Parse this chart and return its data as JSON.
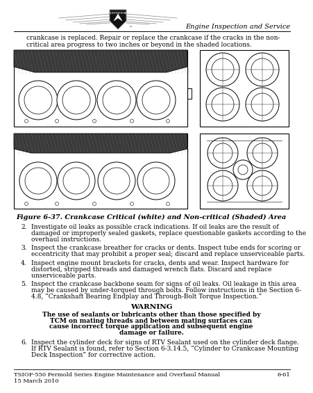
{
  "header_right": "Engine Inspection and Service",
  "intro_text_1": "crankcase is replaced. Repair or replace the crankcase if the cracks in the non-",
  "intro_text_2": "critical area progress to two inches or beyond in the shaded locations.",
  "figure_caption": "Figure 6-37. Crankcase Critical (white) and Non-critical (Shaded) Area",
  "items": [
    {
      "num": "2.",
      "text": "Investigate oil leaks as possible crack indications. If oil leaks are the result of\ndamaged or improperly sealed gaskets, replace questionable gaskets according to the\noverhaul instructions."
    },
    {
      "num": "3.",
      "text": "Inspect the crankcase breather for cracks or dents. Inspect tube ends for scoring or\neccentricity that may prohibit a proper seal; discard and replace unserviceable parts."
    },
    {
      "num": "4.",
      "text": "Inspect engine mount brackets for cracks, dents and wear. Inspect hardware for\ndistorted, stripped threads and damaged wrench flats. Discard and replace\nunserviceable parts."
    },
    {
      "num": "5.",
      "text": "Inspect the crankcase backbone seam for signs of oil leaks. Oil leakage in this area\nmay be caused by under-torqued through bolts. Follow instructions in the Section 6-\n4.8, “Crankshaft Bearing Endplay and Through-Bolt Torque Inspection.”"
    }
  ],
  "warning_title": "WARNING",
  "warning_text_lines": [
    "The use of sealants or lubricants other than those specified by",
    "TCM on mating threads and between mating surfaces can",
    "cause incorrect torque application and subsequent engine",
    "damage or failure."
  ],
  "item6": {
    "num": "6.",
    "text": "Inspect the cylinder deck for signs of RTV Sealant used on the cylinder deck flange.\nIf RTV Sealant is found, refer to Section 6-3.14.5, “Cylinder to Crankcase Mounting\nDeck Inspection” for corrective action."
  },
  "footer_left1": "TSIOF-550 Permold Series Engine Maintenance and Overhaul Manual",
  "footer_left2": "15 March 2010",
  "footer_right": "6-61",
  "bg_color": "#ffffff"
}
